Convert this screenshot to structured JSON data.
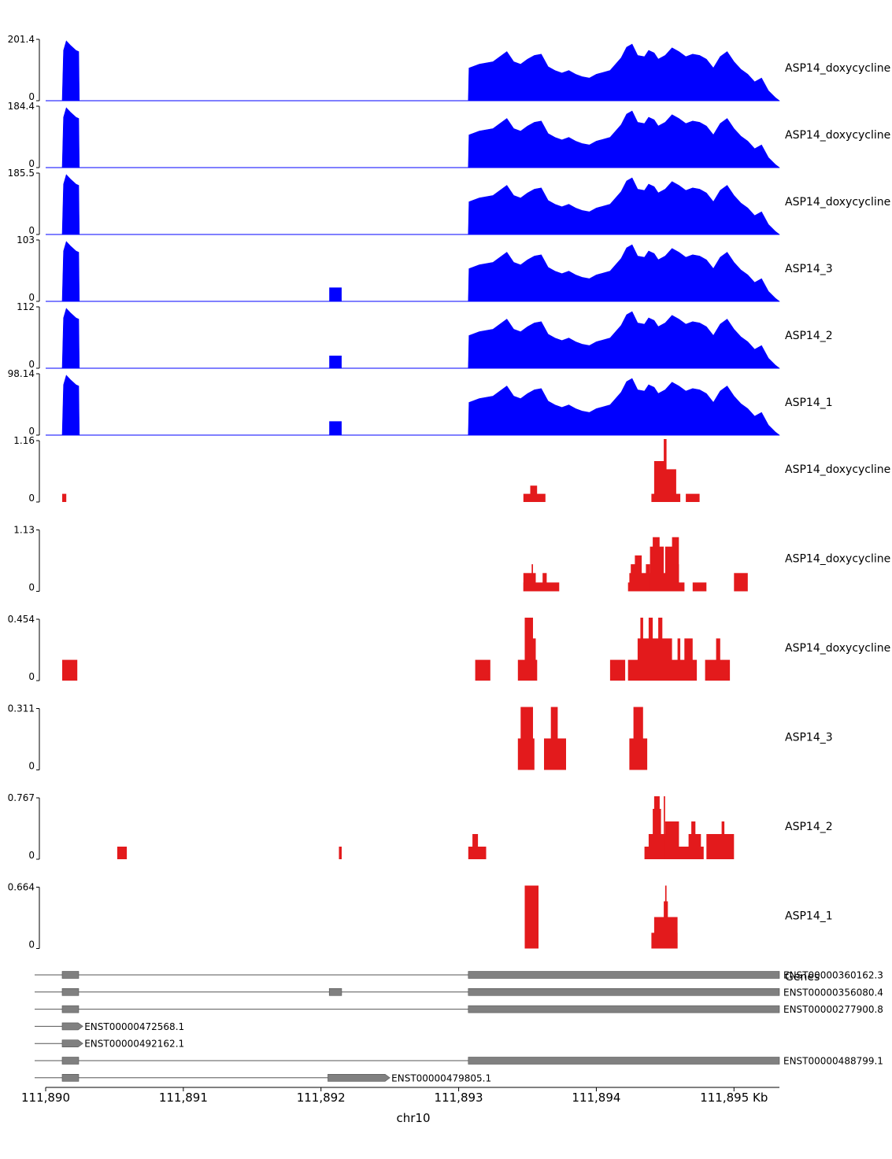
{
  "chart_data": {
    "type": "area",
    "xlabel": "chr10",
    "x_range_kb": [
      111890.0,
      111895.33
    ],
    "x_ticks": [
      {
        "value": 111890,
        "label": "111,890"
      },
      {
        "value": 111891,
        "label": "111,891"
      },
      {
        "value": 111892,
        "label": "111,892"
      },
      {
        "value": 111893,
        "label": "111,893"
      },
      {
        "value": 111894,
        "label": "111,894"
      },
      {
        "value": 111895,
        "label": "111,895 Kb"
      }
    ],
    "coverage_color": "#0000ff",
    "bins_color": "#e31a1c",
    "coverage_tracks": [
      {
        "name": "ASP14_doxycycline",
        "ymax": 201.4,
        "ymax_label": "201.4",
        "ymin_label": "0",
        "junction": 0
      },
      {
        "name": "ASP14_doxycycline",
        "ymax": 184.4,
        "ymax_label": "184.4",
        "ymin_label": "0",
        "junction": 0
      },
      {
        "name": "ASP14_doxycycline",
        "ymax": 185.5,
        "ymax_label": "185.5",
        "ymin_label": "0",
        "junction": 0
      },
      {
        "name": "ASP14_3",
        "ymax": 103,
        "ymax_label": "103",
        "ymin_label": "0",
        "junction": 0.22
      },
      {
        "name": "ASP14_2",
        "ymax": 112,
        "ymax_label": "112",
        "ymin_label": "0",
        "junction": 0.2
      },
      {
        "name": "ASP14_1",
        "ymax": 98.14,
        "ymax_label": "98.14",
        "ymin_label": "0",
        "junction": 0.22
      }
    ],
    "coverage_profile": [
      [
        111890.12,
        0.0
      ],
      [
        111890.13,
        0.8
      ],
      [
        111890.15,
        0.95
      ],
      [
        111890.18,
        0.88
      ],
      [
        111890.22,
        0.8
      ],
      [
        111890.24,
        0.78
      ],
      [
        111890.245,
        0.0
      ],
      [
        111893.07,
        0.0
      ],
      [
        111893.075,
        0.52
      ],
      [
        111893.15,
        0.58
      ],
      [
        111893.25,
        0.62
      ],
      [
        111893.3,
        0.7
      ],
      [
        111893.35,
        0.78
      ],
      [
        111893.4,
        0.62
      ],
      [
        111893.45,
        0.58
      ],
      [
        111893.5,
        0.66
      ],
      [
        111893.55,
        0.72
      ],
      [
        111893.6,
        0.74
      ],
      [
        111893.65,
        0.54
      ],
      [
        111893.7,
        0.48
      ],
      [
        111893.75,
        0.44
      ],
      [
        111893.8,
        0.48
      ],
      [
        111893.85,
        0.42
      ],
      [
        111893.9,
        0.38
      ],
      [
        111893.95,
        0.36
      ],
      [
        111894.0,
        0.42
      ],
      [
        111894.1,
        0.48
      ],
      [
        111894.18,
        0.68
      ],
      [
        111894.22,
        0.85
      ],
      [
        111894.26,
        0.9
      ],
      [
        111894.3,
        0.72
      ],
      [
        111894.35,
        0.7
      ],
      [
        111894.38,
        0.8
      ],
      [
        111894.42,
        0.76
      ],
      [
        111894.45,
        0.66
      ],
      [
        111894.5,
        0.72
      ],
      [
        111894.55,
        0.84
      ],
      [
        111894.6,
        0.78
      ],
      [
        111894.65,
        0.7
      ],
      [
        111894.7,
        0.74
      ],
      [
        111894.75,
        0.72
      ],
      [
        111894.8,
        0.66
      ],
      [
        111894.85,
        0.52
      ],
      [
        111894.9,
        0.7
      ],
      [
        111894.95,
        0.78
      ],
      [
        111895.0,
        0.62
      ],
      [
        111895.05,
        0.5
      ],
      [
        111895.1,
        0.42
      ],
      [
        111895.15,
        0.3
      ],
      [
        111895.2,
        0.36
      ],
      [
        111895.25,
        0.16
      ],
      [
        111895.3,
        0.05
      ],
      [
        111895.33,
        0.0
      ]
    ],
    "bin_tracks": [
      {
        "name": "ASP14_doxycycline",
        "ymax": 1.16,
        "ymax_label": "1.16",
        "ymin_label": "0",
        "bins": [
          [
            111890.12,
            111890.15,
            0.13
          ],
          [
            111893.47,
            111893.63,
            0.13
          ],
          [
            111893.52,
            111893.57,
            0.26
          ],
          [
            111894.4,
            111894.61,
            0.13
          ],
          [
            111894.42,
            111894.5,
            0.65
          ],
          [
            111894.5,
            111894.58,
            0.52
          ],
          [
            111894.49,
            111894.51,
            1.0
          ],
          [
            111894.65,
            111894.75,
            0.13
          ]
        ]
      },
      {
        "name": "ASP14_doxycycline",
        "ymax": 1.13,
        "ymax_label": "1.13",
        "ymin_label": "0",
        "bins": [
          [
            111893.47,
            111893.73,
            0.14
          ],
          [
            111893.47,
            111893.56,
            0.29
          ],
          [
            111893.61,
            111893.64,
            0.29
          ],
          [
            111893.53,
            111893.54,
            0.43
          ],
          [
            111894.23,
            111894.64,
            0.14
          ],
          [
            111894.24,
            111894.58,
            0.29
          ],
          [
            111894.25,
            111894.32,
            0.43
          ],
          [
            111894.28,
            111894.33,
            0.57
          ],
          [
            111894.36,
            111894.39,
            0.43
          ],
          [
            111894.39,
            111894.49,
            0.71
          ],
          [
            111894.41,
            111894.46,
            0.86
          ],
          [
            111894.5,
            111894.56,
            0.71
          ],
          [
            111894.55,
            111894.6,
            0.86
          ],
          [
            111894.56,
            111894.6,
            0.43
          ],
          [
            111894.7,
            111894.8,
            0.14
          ],
          [
            111895.0,
            111895.1,
            0.29
          ]
        ]
      },
      {
        "name": "ASP14_doxycycline",
        "ymax": 0.454,
        "ymax_label": "0.454",
        "ymin_label": "0",
        "bins": [
          [
            111890.12,
            111890.23,
            0.33
          ],
          [
            111893.12,
            111893.23,
            0.33
          ],
          [
            111893.43,
            111893.57,
            0.33
          ],
          [
            111893.48,
            111893.56,
            0.67
          ],
          [
            111893.48,
            111893.54,
            1.0
          ],
          [
            111894.1,
            111894.21,
            0.33
          ],
          [
            111894.23,
            111894.73,
            0.33
          ],
          [
            111894.3,
            111894.55,
            0.67
          ],
          [
            111894.32,
            111894.34,
            1.0
          ],
          [
            111894.38,
            111894.41,
            1.0
          ],
          [
            111894.45,
            111894.48,
            1.0
          ],
          [
            111894.59,
            111894.61,
            0.67
          ],
          [
            111894.64,
            111894.7,
            0.67
          ],
          [
            111894.79,
            111894.97,
            0.33
          ],
          [
            111894.87,
            111894.9,
            0.67
          ]
        ]
      },
      {
        "name": "ASP14_3",
        "ymax": 0.311,
        "ymax_label": "0.311",
        "ymin_label": "0",
        "bins": [
          [
            111893.43,
            111893.55,
            0.5
          ],
          [
            111893.45,
            111893.54,
            1.0
          ],
          [
            111893.62,
            111893.78,
            0.5
          ],
          [
            111893.67,
            111893.72,
            1.0
          ],
          [
            111894.24,
            111894.37,
            0.5
          ],
          [
            111894.27,
            111894.34,
            1.0
          ]
        ]
      },
      {
        "name": "ASP14_2",
        "ymax": 0.767,
        "ymax_label": "0.767",
        "ymin_label": "0",
        "bins": [
          [
            111890.52,
            111890.59,
            0.2
          ],
          [
            111892.13,
            111892.15,
            0.2
          ],
          [
            111893.07,
            111893.2,
            0.2
          ],
          [
            111893.1,
            111893.14,
            0.4
          ],
          [
            111894.35,
            111894.78,
            0.2
          ],
          [
            111894.38,
            111894.59,
            0.4
          ],
          [
            111894.41,
            111894.47,
            0.8
          ],
          [
            111894.42,
            111894.46,
            1.0
          ],
          [
            111894.5,
            111894.6,
            0.6
          ],
          [
            111894.49,
            111894.5,
            1.0
          ],
          [
            111894.67,
            111894.76,
            0.4
          ],
          [
            111894.69,
            111894.72,
            0.6
          ],
          [
            111894.8,
            111895.0,
            0.4
          ],
          [
            111894.91,
            111894.93,
            0.6
          ]
        ]
      },
      {
        "name": "ASP14_1",
        "ymax": 0.664,
        "ymax_label": "0.664",
        "ymin_label": "0",
        "bins": [
          [
            111893.48,
            111893.58,
            1.0
          ],
          [
            111894.4,
            111894.59,
            0.25
          ],
          [
            111894.42,
            111894.59,
            0.5
          ],
          [
            111894.49,
            111894.52,
            0.75
          ],
          [
            111894.5,
            111894.51,
            1.0
          ]
        ]
      }
    ],
    "genes_track": {
      "name": "Genes",
      "line_start": 111889.92,
      "transcripts": [
        {
          "id": "ENST00000360162.3",
          "exons": [
            [
              111890.12,
              111890.24
            ],
            [
              111893.07,
              111895.33
            ]
          ],
          "arrow": false,
          "label_pos": "right"
        },
        {
          "id": "ENST00000356080.4",
          "exons": [
            [
              111890.12,
              111890.24
            ],
            [
              111892.06,
              111892.15
            ],
            [
              111893.07,
              111895.33
            ]
          ],
          "arrow": false,
          "label_pos": "right"
        },
        {
          "id": "ENST00000277900.8",
          "exons": [
            [
              111890.12,
              111890.24
            ],
            [
              111893.07,
              111895.33
            ]
          ],
          "arrow": false,
          "label_pos": "right"
        },
        {
          "id": "ENST00000472568.1",
          "exons": [
            [
              111890.12,
              111890.27
            ]
          ],
          "arrow": true,
          "label_pos": "after"
        },
        {
          "id": "ENST00000492162.1",
          "exons": [
            [
              111890.12,
              111890.27
            ]
          ],
          "arrow": true,
          "label_pos": "after"
        },
        {
          "id": "ENST00000488799.1",
          "exons": [
            [
              111890.12,
              111890.24
            ],
            [
              111893.07,
              111895.33
            ]
          ],
          "arrow": false,
          "label_pos": "right"
        },
        {
          "id": "ENST00000479805.1",
          "exons": [
            [
              111890.12,
              111890.24
            ],
            [
              111892.05,
              111892.5
            ]
          ],
          "arrow": true,
          "label_pos": "after"
        }
      ]
    }
  }
}
